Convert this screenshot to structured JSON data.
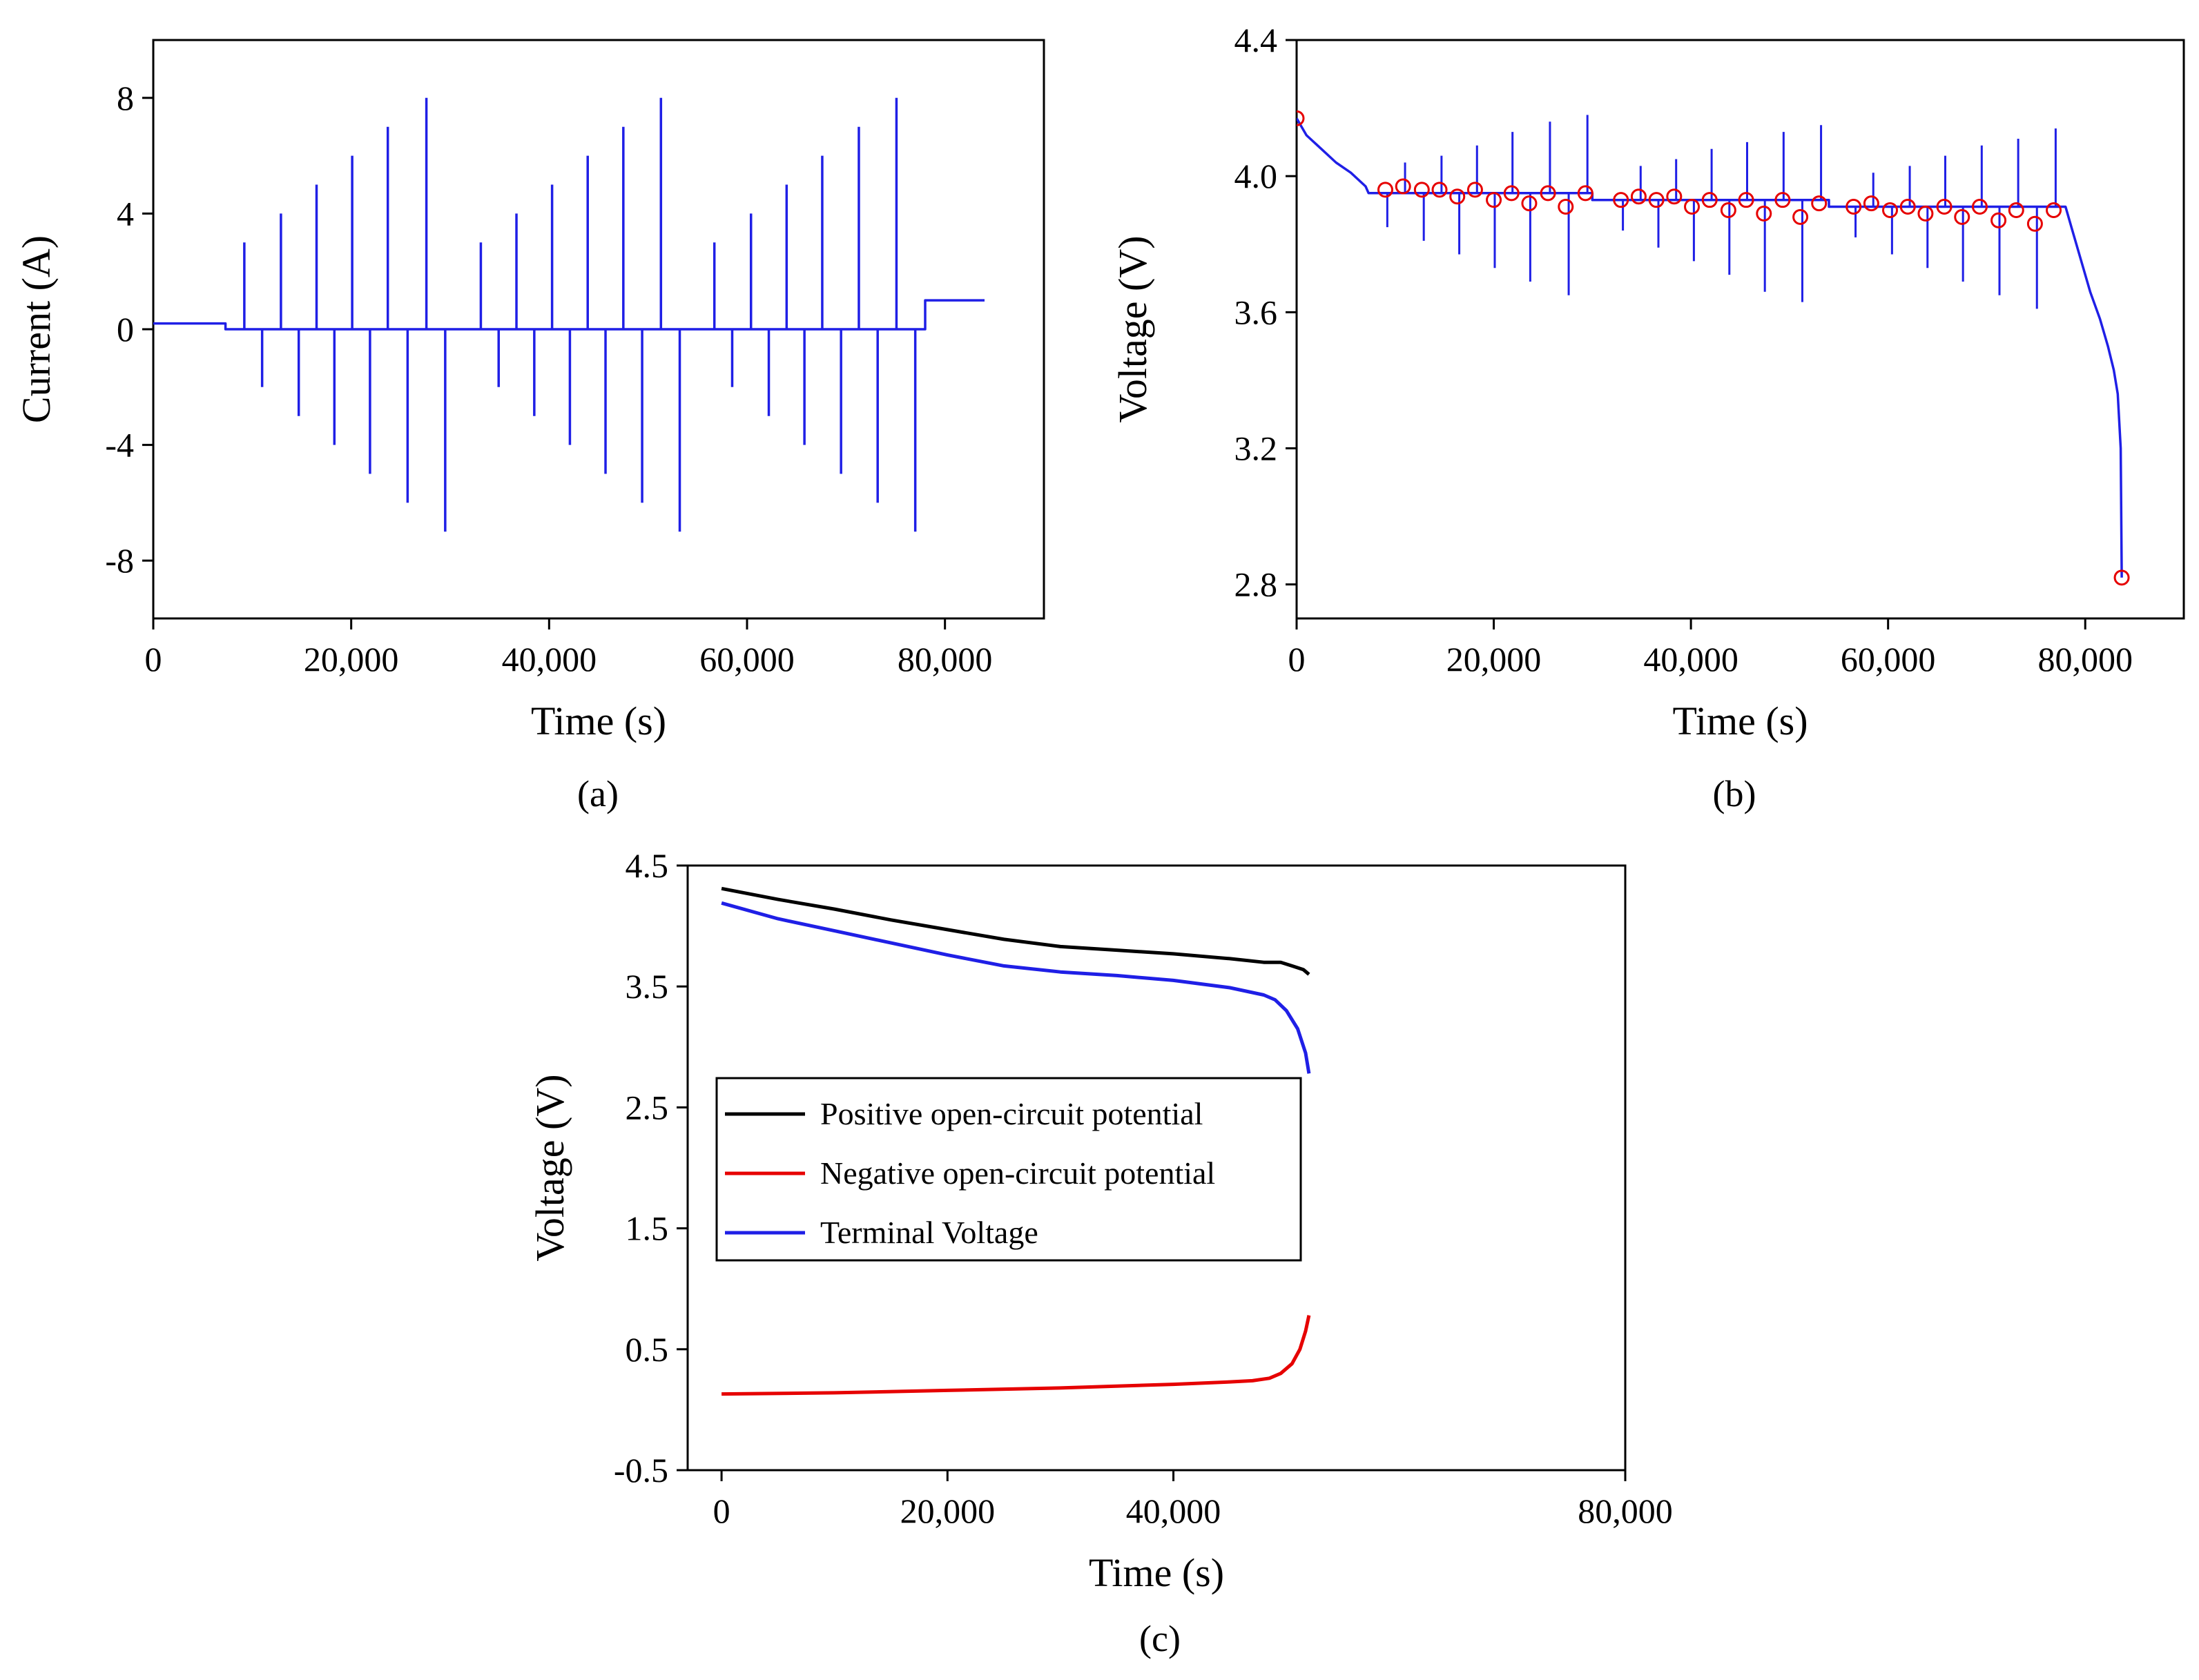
{
  "figure": {
    "panel_a_label": "(a)",
    "panel_b_label": "(b)",
    "panel_c_label": "(c)"
  },
  "chart_data": [
    {
      "id": "a",
      "type": "line",
      "title": "",
      "xlabel": "Time (s)",
      "ylabel": "Current (A)",
      "xlim": [
        0,
        90000
      ],
      "ylim": [
        -10,
        10
      ],
      "xticks": [
        0,
        20000,
        40000,
        60000,
        80000
      ],
      "xtick_labels": [
        "0",
        "20,000",
        "40,000",
        "60,000",
        "80,000"
      ],
      "yticks": [
        -8,
        -4,
        0,
        4,
        8
      ],
      "ytick_labels": [
        "-8",
        "-4",
        "0",
        "4",
        "8"
      ],
      "grid": false,
      "series": [
        {
          "name": "Current",
          "color": "#1f1fe6",
          "x": [
            0,
            7300,
            7300,
            78000,
            78000,
            84000
          ],
          "y": [
            0.2,
            0.2,
            0,
            0,
            1.0,
            1.0
          ],
          "pulses": [
            {
              "t": 9200,
              "amp": 3
            },
            {
              "t": 11000,
              "amp": -2
            },
            {
              "t": 12900,
              "amp": 4
            },
            {
              "t": 14700,
              "amp": -3
            },
            {
              "t": 16500,
              "amp": 5
            },
            {
              "t": 18300,
              "amp": -4
            },
            {
              "t": 20100,
              "amp": 6
            },
            {
              "t": 21900,
              "amp": -5
            },
            {
              "t": 23700,
              "amp": 7
            },
            {
              "t": 25700,
              "amp": -6
            },
            {
              "t": 27600,
              "amp": 8
            },
            {
              "t": 29500,
              "amp": -7
            },
            {
              "t": 33100,
              "amp": 3
            },
            {
              "t": 34900,
              "amp": -2
            },
            {
              "t": 36700,
              "amp": 4
            },
            {
              "t": 38500,
              "amp": -3
            },
            {
              "t": 40300,
              "amp": 5
            },
            {
              "t": 42100,
              "amp": -4
            },
            {
              "t": 43900,
              "amp": 6
            },
            {
              "t": 45700,
              "amp": -5
            },
            {
              "t": 47500,
              "amp": 7
            },
            {
              "t": 49400,
              "amp": -6
            },
            {
              "t": 51300,
              "amp": 8
            },
            {
              "t": 53200,
              "amp": -7
            },
            {
              "t": 56700,
              "amp": 3
            },
            {
              "t": 58500,
              "amp": -2
            },
            {
              "t": 60400,
              "amp": 4
            },
            {
              "t": 62200,
              "amp": -3
            },
            {
              "t": 64000,
              "amp": 5
            },
            {
              "t": 65800,
              "amp": -4
            },
            {
              "t": 67600,
              "amp": 6
            },
            {
              "t": 69500,
              "amp": -5
            },
            {
              "t": 71300,
              "amp": 7
            },
            {
              "t": 73200,
              "amp": -6
            },
            {
              "t": 75100,
              "amp": 8
            },
            {
              "t": 77000,
              "amp": -7
            }
          ]
        }
      ]
    },
    {
      "id": "b",
      "type": "line",
      "title": "",
      "xlabel": "Time (s)",
      "ylabel": "Voltage (V)",
      "xlim": [
        0,
        90000
      ],
      "ylim": [
        2.7,
        4.4
      ],
      "xticks": [
        0,
        20000,
        40000,
        60000,
        80000
      ],
      "xtick_labels": [
        "0",
        "20,000",
        "40,000",
        "60,000",
        "80,000"
      ],
      "yticks": [
        2.8,
        3.2,
        3.6,
        4.0,
        4.4
      ],
      "ytick_labels": [
        "2.8",
        "3.2",
        "3.6",
        "4.0",
        "4.4"
      ],
      "grid": false,
      "series": [
        {
          "name": "Voltage",
          "color": "#1f1fe6",
          "x": [
            0,
            1000,
            2500,
            4000,
            5500,
            7000,
            7300,
            30000,
            30000,
            54000,
            54000,
            78000,
            78600,
            79500,
            80500,
            81500,
            82300,
            82900,
            83300,
            83600,
            83700
          ],
          "y": [
            4.17,
            4.12,
            4.08,
            4.04,
            4.01,
            3.97,
            3.95,
            3.95,
            3.93,
            3.93,
            3.91,
            3.91,
            3.85,
            3.76,
            3.66,
            3.58,
            3.5,
            3.43,
            3.36,
            3.2,
            2.82
          ],
          "spikes": [
            {
              "t": 9200,
              "v": 3.85
            },
            {
              "t": 11000,
              "v": 4.04
            },
            {
              "t": 12900,
              "v": 3.81
            },
            {
              "t": 14700,
              "v": 4.06
            },
            {
              "t": 16500,
              "v": 3.77
            },
            {
              "t": 18300,
              "v": 4.09
            },
            {
              "t": 20100,
              "v": 3.73
            },
            {
              "t": 21900,
              "v": 4.13
            },
            {
              "t": 23700,
              "v": 3.69
            },
            {
              "t": 25700,
              "v": 4.16
            },
            {
              "t": 27600,
              "v": 3.65
            },
            {
              "t": 29500,
              "v": 4.18
            },
            {
              "t": 33100,
              "v": 3.84
            },
            {
              "t": 34900,
              "v": 4.03
            },
            {
              "t": 36700,
              "v": 3.79
            },
            {
              "t": 38500,
              "v": 4.05
            },
            {
              "t": 40300,
              "v": 3.75
            },
            {
              "t": 42100,
              "v": 4.08
            },
            {
              "t": 43900,
              "v": 3.71
            },
            {
              "t": 45700,
              "v": 4.1
            },
            {
              "t": 47500,
              "v": 3.66
            },
            {
              "t": 49400,
              "v": 4.13
            },
            {
              "t": 51300,
              "v": 3.63
            },
            {
              "t": 53200,
              "v": 4.15
            },
            {
              "t": 56700,
              "v": 3.82
            },
            {
              "t": 58500,
              "v": 4.01
            },
            {
              "t": 60400,
              "v": 3.77
            },
            {
              "t": 62200,
              "v": 4.03
            },
            {
              "t": 64000,
              "v": 3.73
            },
            {
              "t": 65800,
              "v": 4.06
            },
            {
              "t": 67600,
              "v": 3.69
            },
            {
              "t": 69500,
              "v": 4.09
            },
            {
              "t": 71300,
              "v": 3.65
            },
            {
              "t": 73200,
              "v": 4.11
            },
            {
              "t": 75100,
              "v": 3.61
            },
            {
              "t": 77000,
              "v": 4.14
            }
          ]
        },
        {
          "name": "Sample points",
          "color": "#e60000",
          "marker": "circle",
          "x": [
            0,
            9000,
            10800,
            12700,
            14500,
            16300,
            18100,
            20000,
            21800,
            23600,
            25500,
            27300,
            29300,
            32900,
            34700,
            36500,
            38300,
            40100,
            41900,
            43800,
            45600,
            47400,
            49300,
            51100,
            53000,
            56500,
            58300,
            60200,
            62000,
            63800,
            65700,
            67500,
            69300,
            71200,
            73000,
            74900,
            76800,
            83700
          ],
          "y": [
            4.17,
            3.96,
            3.97,
            3.96,
            3.96,
            3.94,
            3.96,
            3.93,
            3.95,
            3.92,
            3.95,
            3.91,
            3.95,
            3.93,
            3.94,
            3.93,
            3.94,
            3.91,
            3.93,
            3.9,
            3.93,
            3.89,
            3.93,
            3.88,
            3.92,
            3.91,
            3.92,
            3.9,
            3.91,
            3.89,
            3.91,
            3.88,
            3.91,
            3.87,
            3.9,
            3.86,
            3.9,
            2.82
          ]
        }
      ]
    },
    {
      "id": "c",
      "type": "line",
      "title": "",
      "xlabel": "Time (s)",
      "ylabel": "Voltage (V)",
      "xlim": [
        -3000,
        80000
      ],
      "ylim": [
        -0.5,
        4.5
      ],
      "xticks": [
        0,
        20000,
        40000,
        80000
      ],
      "xtick_labels": [
        "0",
        "20,000",
        "40,000",
        "80,000"
      ],
      "yticks": [
        -0.5,
        0.5,
        1.5,
        2.5,
        3.5,
        4.5
      ],
      "ytick_labels": [
        "-0.5",
        "0.5",
        "1.5",
        "2.5",
        "3.5",
        "4.5"
      ],
      "grid": false,
      "legend": {
        "location": "center-left",
        "entries": [
          "Positive open-circuit potential",
          "Negative open-circuit potential",
          "Terminal Voltage"
        ]
      },
      "series": [
        {
          "name": "Positive open-circuit potential",
          "color": "#000000",
          "x": [
            0,
            5000,
            10000,
            15000,
            20000,
            25000,
            30000,
            35000,
            40000,
            45000,
            48000,
            49500,
            50500,
            51500,
            52000
          ],
          "y": [
            4.31,
            4.22,
            4.14,
            4.05,
            3.97,
            3.89,
            3.83,
            3.8,
            3.77,
            3.73,
            3.7,
            3.7,
            3.67,
            3.64,
            3.6
          ]
        },
        {
          "name": "Negative open-circuit potential",
          "color": "#e60000",
          "x": [
            0,
            10000,
            20000,
            30000,
            40000,
            45000,
            47000,
            48500,
            49500,
            50500,
            51200,
            51700,
            52000
          ],
          "y": [
            0.13,
            0.14,
            0.16,
            0.18,
            0.21,
            0.23,
            0.24,
            0.26,
            0.3,
            0.38,
            0.5,
            0.65,
            0.78
          ]
        },
        {
          "name": "Terminal Voltage",
          "color": "#1f1fe6",
          "x": [
            0,
            5000,
            10000,
            15000,
            20000,
            25000,
            30000,
            35000,
            40000,
            45000,
            48000,
            49000,
            50000,
            51000,
            51700,
            52000
          ],
          "y": [
            4.19,
            4.06,
            3.96,
            3.86,
            3.76,
            3.67,
            3.62,
            3.59,
            3.55,
            3.49,
            3.43,
            3.39,
            3.3,
            3.15,
            2.95,
            2.78
          ]
        }
      ]
    }
  ]
}
